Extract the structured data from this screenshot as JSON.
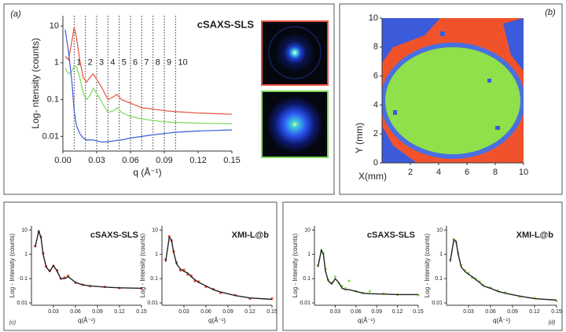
{
  "chart_data": [
    {
      "type": "line",
      "panel_label": "(a)",
      "title": "cSAXS-SLS",
      "xlabel": "q (Å⁻¹)",
      "ylabel": "Log- ntensity (counts)",
      "log_y": true,
      "xlim": [
        0,
        0.15
      ],
      "ylim": [
        0.004,
        19
      ],
      "yticks": [
        0.01,
        0.1,
        1,
        10
      ],
      "xticks": [
        {
          "value": 0,
          "label": "0.00"
        },
        0.03,
        0.06,
        0.09,
        0.12,
        0.15
      ],
      "x": [
        0.002,
        0.005,
        0.008,
        0.01,
        0.012,
        0.015,
        0.018,
        0.021,
        0.024,
        0.027,
        0.03,
        0.035,
        0.04,
        0.045,
        0.048,
        0.052,
        0.06,
        0.07,
        0.08,
        0.09,
        0.1,
        0.12,
        0.15
      ],
      "peak_lines": {
        "x": [
          0.01,
          0.02,
          0.03,
          0.04,
          0.05,
          0.06,
          0.07,
          0.08,
          0.09,
          0.1
        ],
        "labels": [
          1,
          2,
          3,
          4,
          5,
          6,
          7,
          8,
          9,
          10
        ]
      },
      "series": [
        {
          "color": "#e8503a",
          "mode": "line",
          "values": [
            1.5,
            1.2,
            4,
            9,
            5,
            1.2,
            0.4,
            0.3,
            0.4,
            0.5,
            0.35,
            0.2,
            0.1,
            0.12,
            0.14,
            0.1,
            0.08,
            0.06,
            0.055,
            0.05,
            0.047,
            0.043,
            0.04
          ]
        },
        {
          "color": "#7ed957",
          "mode": "line",
          "values": [
            0.7,
            0.5,
            0.6,
            0.8,
            0.8,
            0.4,
            0.15,
            0.1,
            0.13,
            0.2,
            0.15,
            0.08,
            0.045,
            0.05,
            0.06,
            0.045,
            0.035,
            0.03,
            0.027,
            0.025,
            0.024,
            0.023,
            0.022
          ]
        },
        {
          "color": "#3b5bdb",
          "mode": "line",
          "values": [
            8,
            2,
            0.3,
            0.05,
            0.02,
            0.012,
            0.009,
            0.008,
            0.008,
            0.008,
            0.0075,
            0.007,
            0.0072,
            0.0075,
            0.0078,
            0.008,
            0.009,
            0.01,
            0.011,
            0.012,
            0.013,
            0.014,
            0.015
          ]
        }
      ]
    },
    {
      "type": "map",
      "panel_label": "(b)",
      "xlabel": "X(mm)",
      "ylabel": "Y (mm)",
      "xlim": [
        0,
        10
      ],
      "ylim": [
        0,
        10
      ],
      "xticks": [
        2,
        4,
        6,
        8,
        10
      ],
      "yticks": [
        0,
        2,
        4,
        6,
        8,
        10
      ]
    },
    {
      "type": "line",
      "panel_label": "(c)",
      "title": "cSAXS-SLS",
      "xlabel": "q(Å⁻¹)",
      "ylabel": "Log - Intensity (counts)",
      "log_y": true,
      "xlim": [
        0,
        0.15
      ],
      "ylim": [
        0.008,
        15
      ],
      "yticks": [
        0.01,
        0.1,
        1,
        10
      ],
      "xticks": [
        0.03,
        0.06,
        0.09,
        0.12,
        0.15
      ],
      "x": [
        0.005,
        0.01,
        0.013,
        0.016,
        0.02,
        0.025,
        0.03,
        0.035,
        0.04,
        0.045,
        0.05,
        0.06,
        0.07,
        0.08,
        0.1,
        0.12,
        0.15
      ],
      "series": [
        {
          "color": "#e8503a",
          "mode": "markers",
          "values": [
            2.2,
            8.5,
            5.2,
            1.1,
            0.32,
            0.21,
            0.33,
            0.22,
            0.1,
            0.11,
            0.13,
            0.068,
            0.056,
            0.049,
            0.046,
            0.041,
            0.04
          ]
        },
        {
          "color": "#222222",
          "mode": "line",
          "values": [
            2,
            9,
            5,
            1,
            0.3,
            0.2,
            0.35,
            0.2,
            0.1,
            0.1,
            0.12,
            0.07,
            0.055,
            0.05,
            0.045,
            0.042,
            0.04
          ]
        }
      ]
    },
    {
      "type": "line",
      "title": "XMI-L@b",
      "xlabel": "q(Å⁻¹)",
      "ylabel": "Log - Intensity (counts)",
      "log_y": true,
      "xlim": [
        0,
        0.15
      ],
      "ylim": [
        0.008,
        15
      ],
      "yticks": [
        0.01,
        0.1,
        1,
        10
      ],
      "xticks": [
        0.03,
        0.06,
        0.09,
        0.12,
        0.15
      ],
      "x": [
        0.005,
        0.01,
        0.013,
        0.016,
        0.02,
        0.025,
        0.03,
        0.035,
        0.04,
        0.045,
        0.05,
        0.06,
        0.07,
        0.08,
        0.1,
        0.12,
        0.15
      ],
      "series": [
        {
          "color": "#e8503a",
          "mode": "markers",
          "values": [
            0.6,
            5.5,
            3.6,
            1.3,
            0.45,
            0.22,
            0.23,
            0.15,
            0.13,
            0.08,
            0.075,
            0.046,
            0.037,
            0.026,
            0.021,
            0.015,
            0.015
          ]
        },
        {
          "color": "#222222",
          "mode": "line",
          "values": [
            0.5,
            5,
            4,
            1.2,
            0.4,
            0.25,
            0.2,
            0.17,
            0.12,
            0.09,
            0.07,
            0.05,
            0.035,
            0.028,
            0.02,
            0.016,
            0.014
          ]
        }
      ]
    },
    {
      "type": "line",
      "title": "cSAXS-SLS",
      "xlabel": "q(Å⁻¹)",
      "ylabel": "Log - Intensity (counts)",
      "log_y": true,
      "xlim": [
        0,
        0.15
      ],
      "ylim": [
        0.008,
        15
      ],
      "yticks": [
        0.01,
        0.1,
        1,
        10
      ],
      "xticks": [
        0.03,
        0.06,
        0.09,
        0.12,
        0.15
      ],
      "x": [
        0.005,
        0.01,
        0.013,
        0.016,
        0.02,
        0.025,
        0.03,
        0.035,
        0.04,
        0.045,
        0.05,
        0.06,
        0.07,
        0.08,
        0.1,
        0.12,
        0.15
      ],
      "series": [
        {
          "color": "#8fdc5a",
          "mode": "markers",
          "values": [
            0.35,
            1.4,
            1.1,
            0.25,
            0.09,
            0.07,
            0.12,
            0.065,
            0.05,
            0.04,
            0.08,
            0.03,
            0.026,
            0.03,
            0.024,
            0.022,
            0.021
          ]
        },
        {
          "color": "#222222",
          "mode": "line",
          "values": [
            0.3,
            1.5,
            1,
            0.2,
            0.08,
            0.06,
            0.1,
            0.07,
            0.04,
            0.035,
            0.035,
            0.03,
            0.025,
            0.024,
            0.023,
            0.022,
            0.022
          ]
        }
      ]
    },
    {
      "type": "line",
      "panel_label": "(d)",
      "title": "XMI-L@b",
      "xlabel": "q(Å⁻¹)",
      "ylabel": "Log - Intensity (counts)",
      "log_y": true,
      "xlim": [
        0,
        0.15
      ],
      "ylim": [
        0.008,
        15
      ],
      "yticks": [
        0.01,
        0.1,
        1,
        10
      ],
      "xticks": [
        0.03,
        0.06,
        0.09,
        0.12,
        0.15
      ],
      "x": [
        0.005,
        0.01,
        0.013,
        0.016,
        0.02,
        0.025,
        0.03,
        0.035,
        0.04,
        0.045,
        0.05,
        0.06,
        0.07,
        0.08,
        0.1,
        0.12,
        0.15
      ],
      "series": [
        {
          "color": "#8fdc5a",
          "mode": "markers",
          "values": [
            0.6,
            4.2,
            3.2,
            1.1,
            0.35,
            0.22,
            0.17,
            0.11,
            0.1,
            0.075,
            0.055,
            0.042,
            0.032,
            0.027,
            0.018,
            0.016,
            0.012
          ]
        },
        {
          "color": "#222222",
          "mode": "line",
          "values": [
            0.5,
            4,
            3.5,
            1,
            0.3,
            0.2,
            0.15,
            0.12,
            0.09,
            0.07,
            0.05,
            0.04,
            0.03,
            0.025,
            0.019,
            0.015,
            0.013
          ]
        }
      ]
    }
  ]
}
